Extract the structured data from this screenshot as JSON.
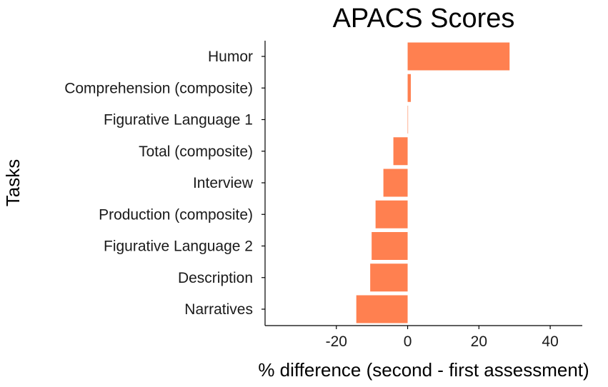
{
  "chart_data": {
    "type": "bar",
    "orientation": "horizontal",
    "title": "APACS Scores",
    "xlabel": "% difference (second - first assessment)",
    "ylabel": "Tasks",
    "categories": [
      "Humor",
      "Comprehension (composite)",
      "Figurative Language 1",
      "Total (composite)",
      "Interview",
      "Production (composite)",
      "Figurative Language 2",
      "Description",
      "Narratives"
    ],
    "values": [
      28.6,
      0.9,
      0.1,
      -4.0,
      -6.8,
      -9.0,
      -10.1,
      -10.5,
      -14.4
    ],
    "xlim": [
      -40,
      49
    ],
    "xticks": [
      -20,
      0,
      20,
      40
    ],
    "xtick_labels": [
      "-20",
      "0",
      "20",
      "40"
    ],
    "bar_color": "#ff8050",
    "grid": false
  }
}
